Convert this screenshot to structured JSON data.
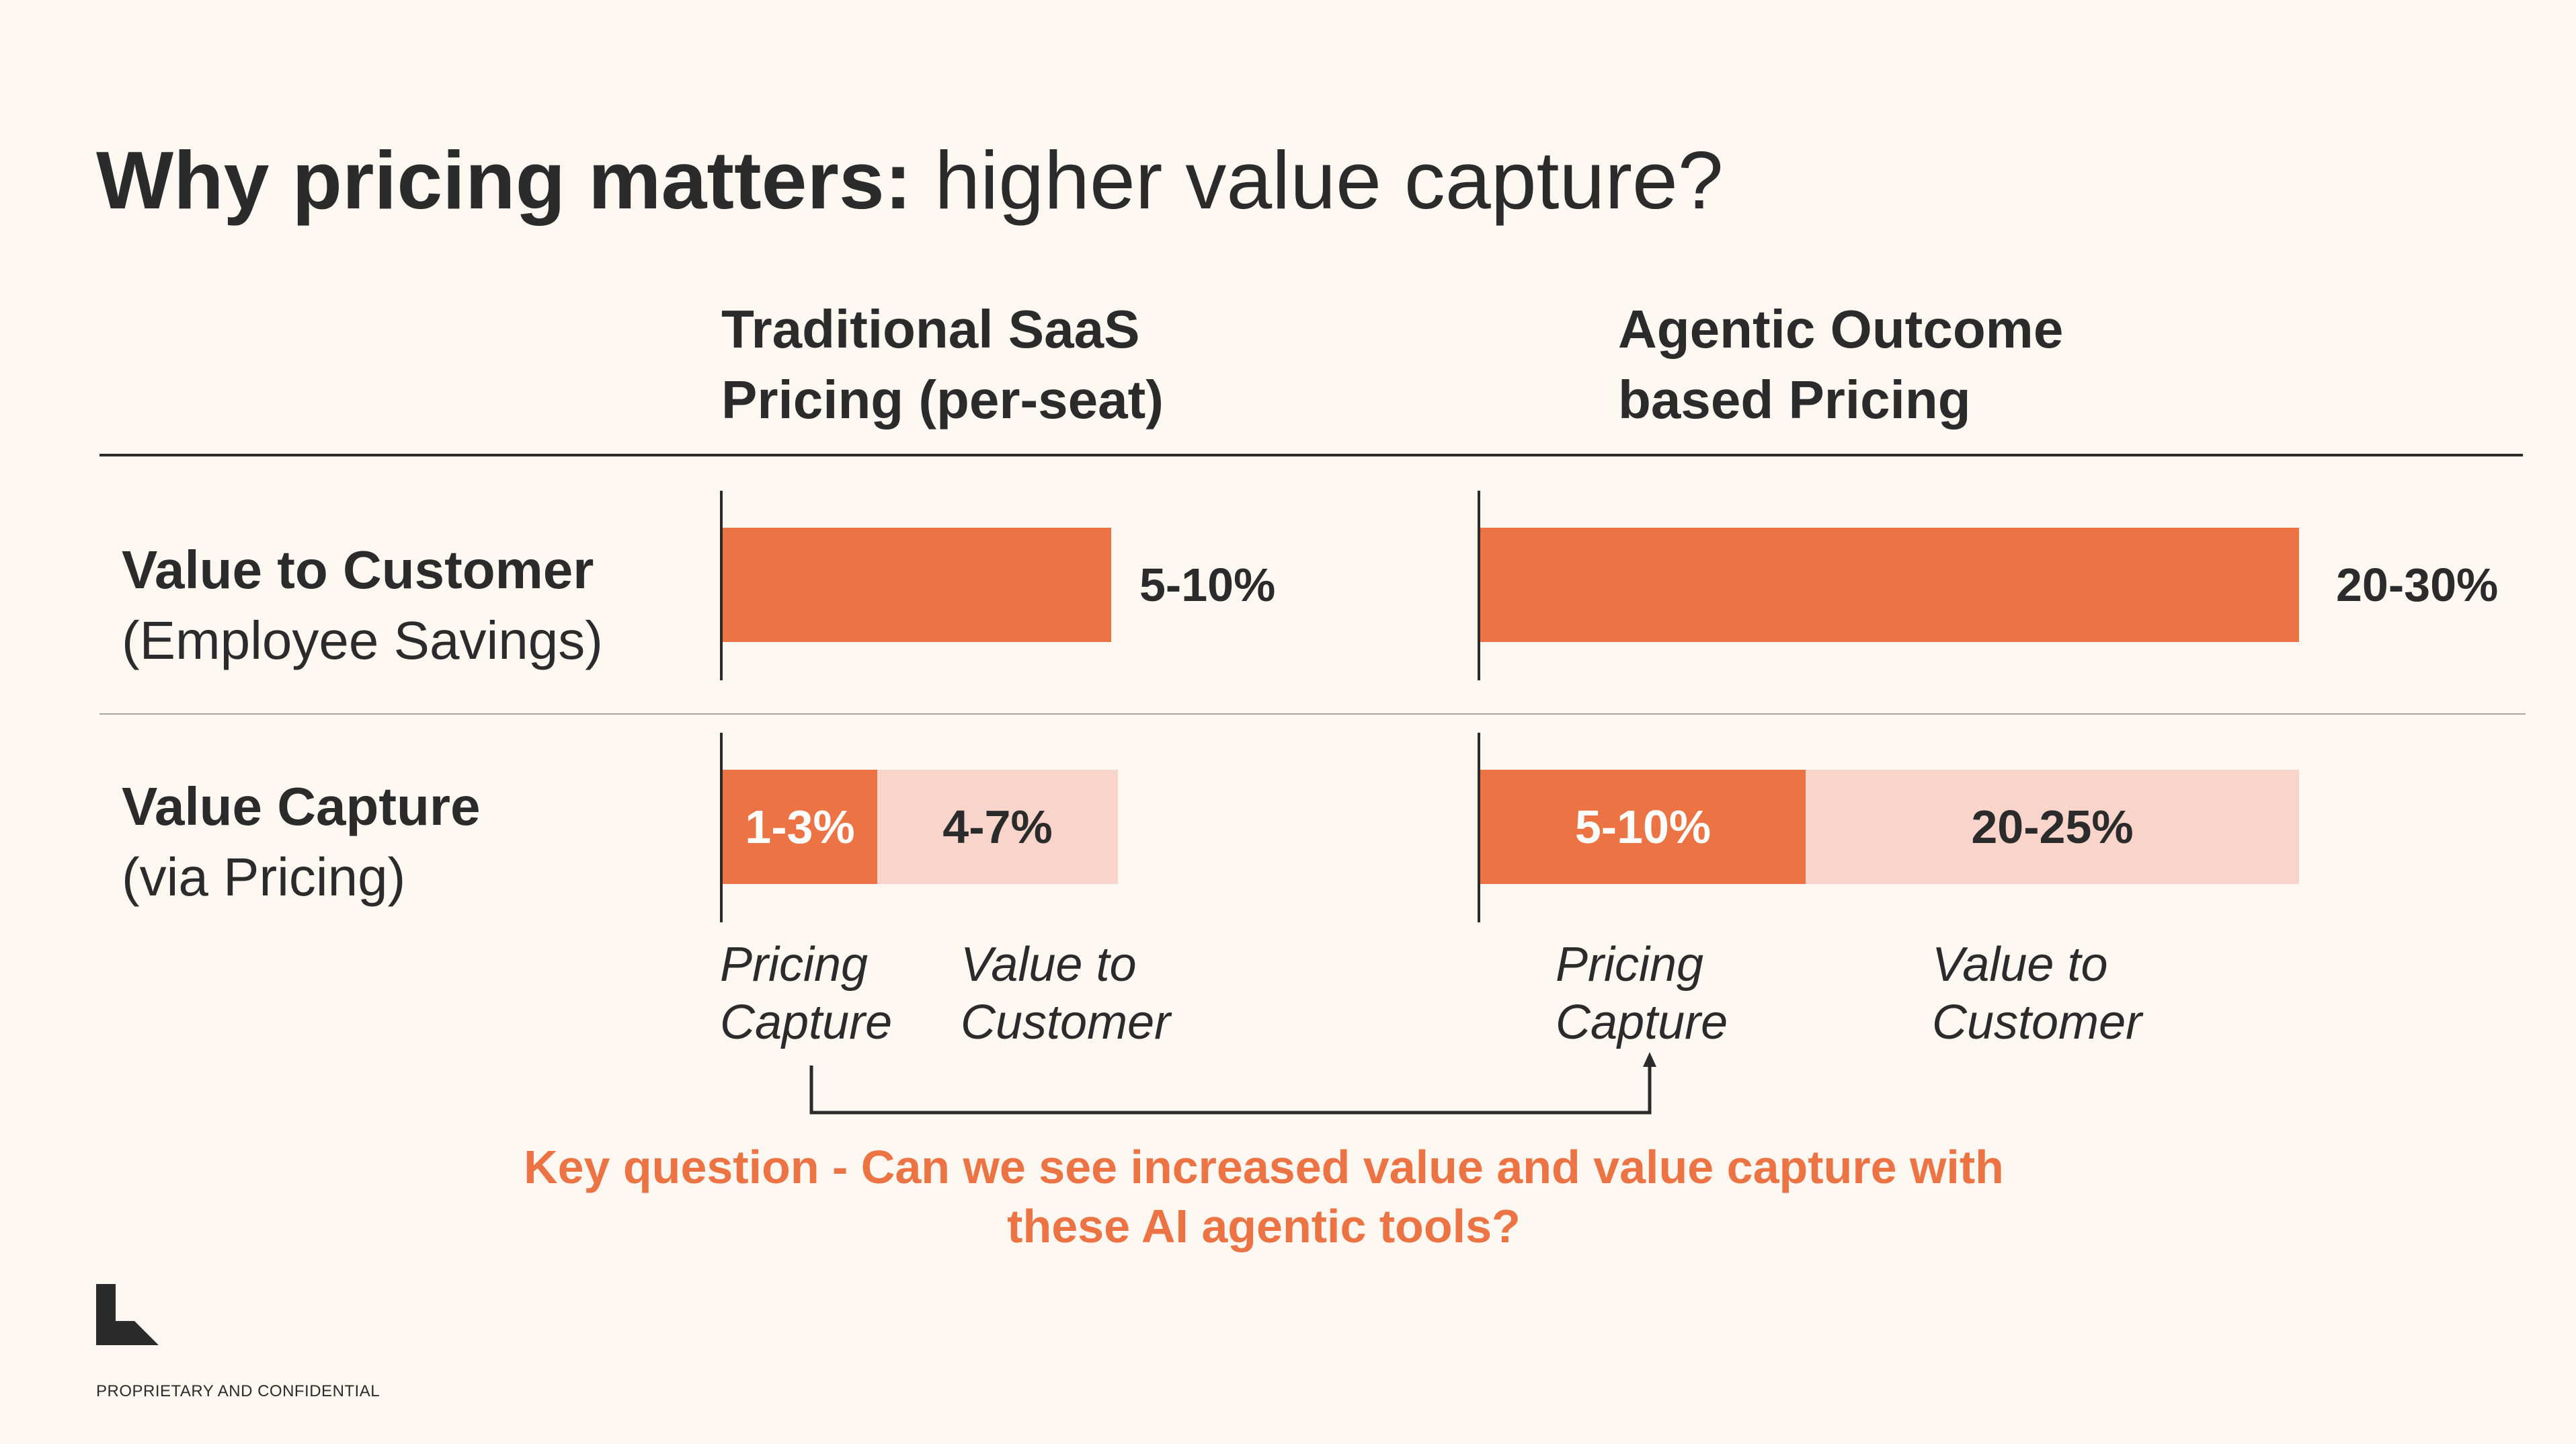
{
  "title": {
    "bold": "Why pricing matters:",
    "rest": "higher value capture?"
  },
  "columns": [
    {
      "line1": "Traditional SaaS",
      "line2": "Pricing (per-seat)"
    },
    {
      "line1": "Agentic Outcome",
      "line2": "based Pricing"
    }
  ],
  "rows": [
    {
      "bold": "Value to Customer",
      "normal": "(Employee Savings)"
    },
    {
      "bold": "Value Capture",
      "normal": "(via Pricing)"
    }
  ],
  "chart_data": {
    "type": "bar",
    "orientation": "horizontal",
    "stacked": true,
    "groups": [
      "Traditional SaaS Pricing (per-seat)",
      "Agentic Outcome based Pricing"
    ],
    "rows": [
      "Value to Customer (Employee Savings)",
      "Value Capture (via Pricing)"
    ],
    "bars": [
      {
        "group": "Traditional SaaS Pricing (per-seat)",
        "row": "Value to Customer (Employee Savings)",
        "segments": [
          {
            "label": "5-10%",
            "range": [
              5,
              10
            ],
            "color": "#EC7444"
          }
        ]
      },
      {
        "group": "Agentic Outcome based Pricing",
        "row": "Value to Customer (Employee Savings)",
        "segments": [
          {
            "label": "20-30%",
            "range": [
              20,
              30
            ],
            "color": "#EC7444"
          }
        ]
      },
      {
        "group": "Traditional SaaS Pricing (per-seat)",
        "row": "Value Capture (via Pricing)",
        "segments": [
          {
            "name": "Pricing Capture",
            "label": "1-3%",
            "range": [
              1,
              3
            ],
            "color": "#EC7444"
          },
          {
            "name": "Value to Customer",
            "label": "4-7%",
            "range": [
              4,
              7
            ],
            "color": "#F8D4CA"
          }
        ]
      },
      {
        "group": "Agentic Outcome based Pricing",
        "row": "Value Capture (via Pricing)",
        "segments": [
          {
            "name": "Pricing Capture",
            "label": "5-10%",
            "range": [
              5,
              10
            ],
            "color": "#EC7444"
          },
          {
            "name": "Value to Customer",
            "label": "20-25%",
            "range": [
              20,
              25
            ],
            "color": "#F8D4CA"
          }
        ]
      }
    ]
  },
  "legend": {
    "left": {
      "capture": [
        "Pricing",
        "Capture"
      ],
      "value": [
        "Value to",
        "Customer"
      ]
    },
    "right": {
      "capture": [
        "Pricing",
        "Capture"
      ],
      "value": [
        "Value to",
        "Customer"
      ]
    }
  },
  "question": {
    "line1": "Key question - Can we see increased value and value capture with",
    "line2": "these AI agentic tools?"
  },
  "footer": "PROPRIETARY AND CONFIDENTIAL",
  "colors": {
    "background": "#FDF7F1",
    "accent": "#EC7444",
    "light": "#F8D4CA",
    "text": "#2B2B2B"
  }
}
